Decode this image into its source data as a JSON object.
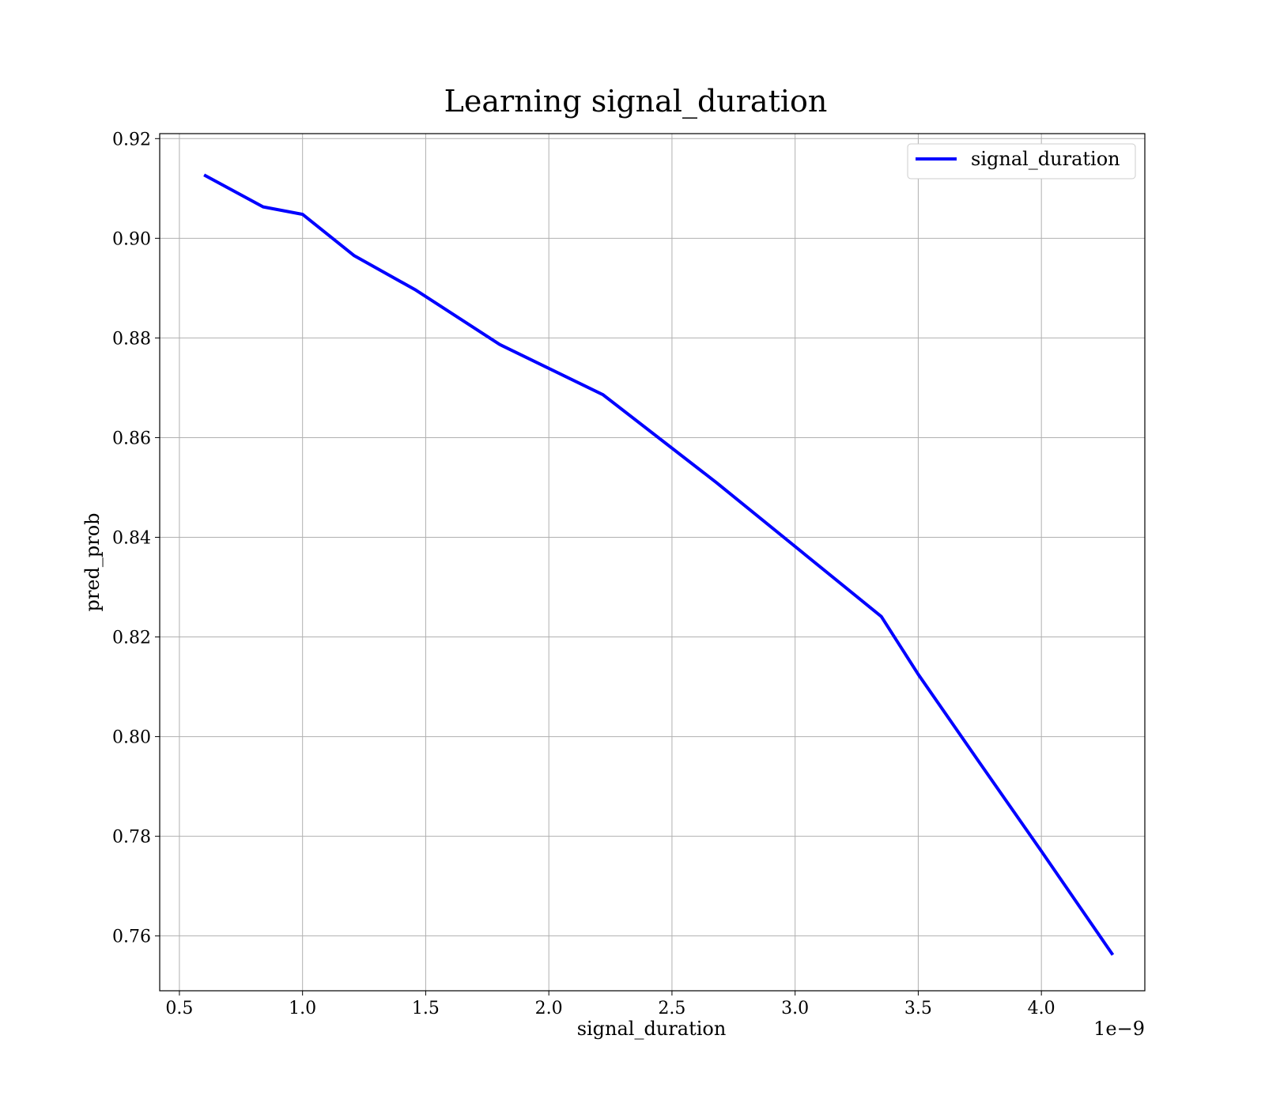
{
  "chart_data": {
    "type": "line",
    "title": "Learning signal_duration",
    "xlabel": "signal_duration",
    "ylabel": "pred_prob",
    "x_offset_label": "1e−9",
    "xlim": [
      0.42,
      4.42
    ],
    "ylim": [
      0.749,
      0.921
    ],
    "x_scale": 1e-09,
    "xticks": [
      0.5,
      1.0,
      1.5,
      2.0,
      2.5,
      3.0,
      3.5,
      4.0
    ],
    "xtick_labels": [
      "0.5",
      "1.0",
      "1.5",
      "2.0",
      "2.5",
      "3.0",
      "3.5",
      "4.0"
    ],
    "yticks": [
      0.76,
      0.78,
      0.8,
      0.82,
      0.84,
      0.86,
      0.88,
      0.9,
      0.92
    ],
    "ytick_labels": [
      "0.76",
      "0.78",
      "0.80",
      "0.82",
      "0.84",
      "0.86",
      "0.88",
      "0.90",
      "0.92"
    ],
    "grid": true,
    "legend_position": "top-right",
    "series": [
      {
        "name": "signal_duration",
        "color": "#0000ff",
        "x": [
          0.6,
          0.84,
          1.0,
          1.21,
          1.46,
          1.8,
          2.22,
          2.68,
          3.35,
          3.5,
          3.75,
          4.0,
          4.29
        ],
        "y": [
          0.9127,
          0.9063,
          0.9048,
          0.8965,
          0.8896,
          0.8787,
          0.8686,
          0.851,
          0.8241,
          0.8125,
          0.7947,
          0.777,
          0.7562
        ]
      }
    ]
  }
}
